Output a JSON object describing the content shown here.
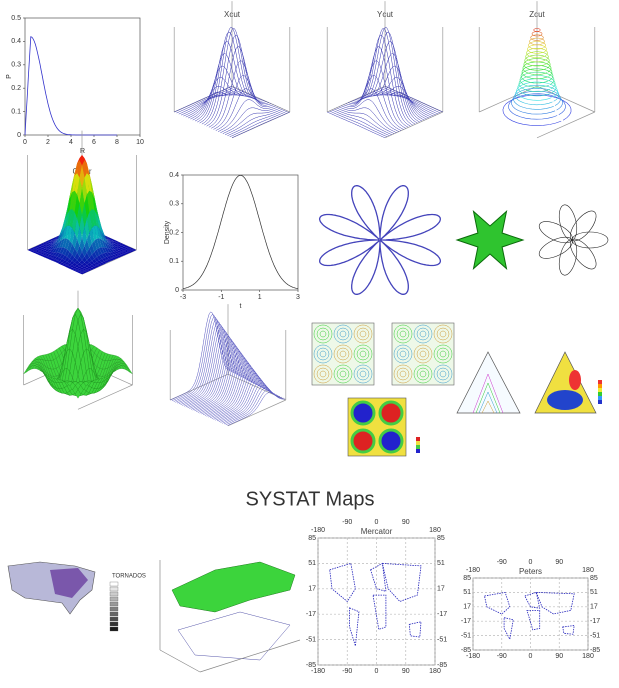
{
  "radial_plot": {
    "x_label": "R",
    "y_label": "P",
    "x_ticks": [
      "0",
      "2",
      "4",
      "6",
      "8",
      "10"
    ],
    "y_ticks": [
      "0",
      "0.1",
      "0.2",
      "0.3",
      "0.4",
      "0.5"
    ]
  },
  "cut_plots": [
    {
      "title": "Xcut"
    },
    {
      "title": "Ycut"
    },
    {
      "title": "Zcut"
    }
  ],
  "color_plot": {
    "title": "Color"
  },
  "density_plot": {
    "x_label": "t",
    "y_label": "Density",
    "x_ticks": [
      "-3",
      "-1",
      "1",
      "3"
    ],
    "y_ticks": [
      "0",
      "0.1",
      "0.2",
      "0.3",
      "0.4"
    ]
  },
  "section_title": "SYSTAT Maps",
  "tornado_map": {
    "legend_title": "TORNADOS"
  },
  "mercator": {
    "title": "Mercator",
    "lon_ticks": [
      "-180",
      "-90",
      "0",
      "90",
      "180"
    ],
    "lat_ticks": [
      "85",
      "51",
      "17",
      "-17",
      "-51",
      "-85"
    ]
  },
  "peters": {
    "title": "Peters",
    "lon_ticks": [
      "-180",
      "-90",
      "0",
      "90",
      "180"
    ],
    "lat_ticks": [
      "85",
      "51",
      "17",
      "-17",
      "-51",
      "-85"
    ]
  }
}
